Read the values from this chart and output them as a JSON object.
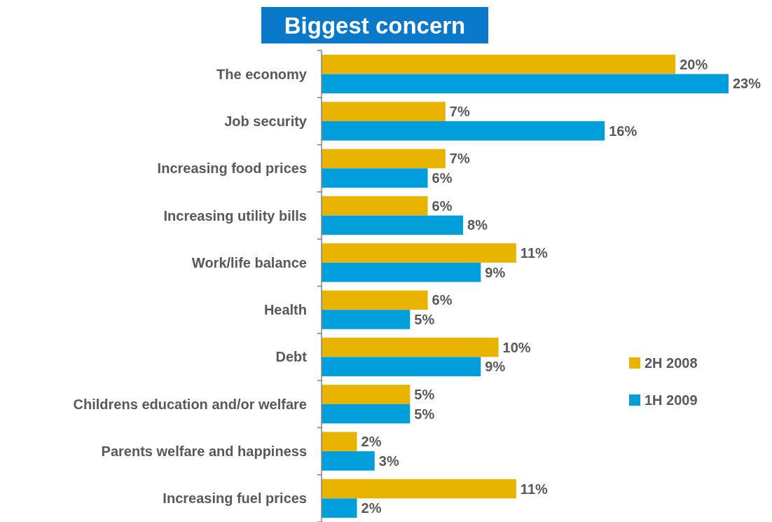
{
  "chart_data": {
    "type": "bar",
    "orientation": "horizontal",
    "title": "Biggest concern",
    "categories": [
      "The economy",
      "Job security",
      "Increasing food prices",
      "Increasing utility bills",
      "Work/life balance",
      "Health",
      "Debt",
      "Childrens education and/or welfare",
      "Parents welfare and happiness",
      "Increasing fuel prices"
    ],
    "series": [
      {
        "name": "2H 2008",
        "color": "#e8b400",
        "values": [
          20,
          7,
          7,
          6,
          11,
          6,
          10,
          5,
          2,
          11
        ],
        "value_labels": [
          "20%",
          "7%",
          "7%",
          "6%",
          "11%",
          "6%",
          "10%",
          "5%",
          "2%",
          "11%"
        ]
      },
      {
        "name": "1H 2009",
        "color": "#009fdb",
        "values": [
          23,
          16,
          6,
          8,
          9,
          5,
          9,
          5,
          3,
          2
        ],
        "value_labels": [
          "23%",
          "16%",
          "6%",
          "8%",
          "9%",
          "5%",
          "9%",
          "5%",
          "3%",
          "2%"
        ]
      }
    ],
    "legend": "right",
    "grid": false
  }
}
